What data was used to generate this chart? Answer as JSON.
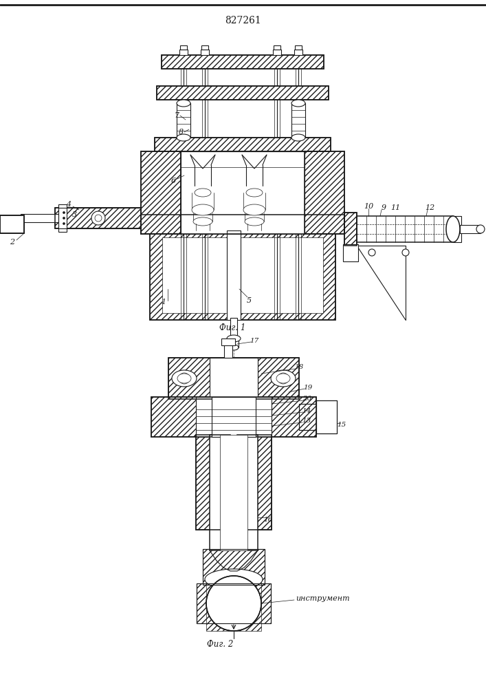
{
  "title": "827261",
  "fig1_caption": "Фиг. 1",
  "fig2_caption": "Фиг. 2",
  "fig2_annotation": "инструмент",
  "background_color": "#ffffff",
  "line_color": "#1a1a1a",
  "title_fontsize": 10,
  "caption_fontsize": 8.5,
  "annotation_fontsize": 8,
  "fig_width": 7.07,
  "fig_height": 10.0,
  "dpi": 100
}
